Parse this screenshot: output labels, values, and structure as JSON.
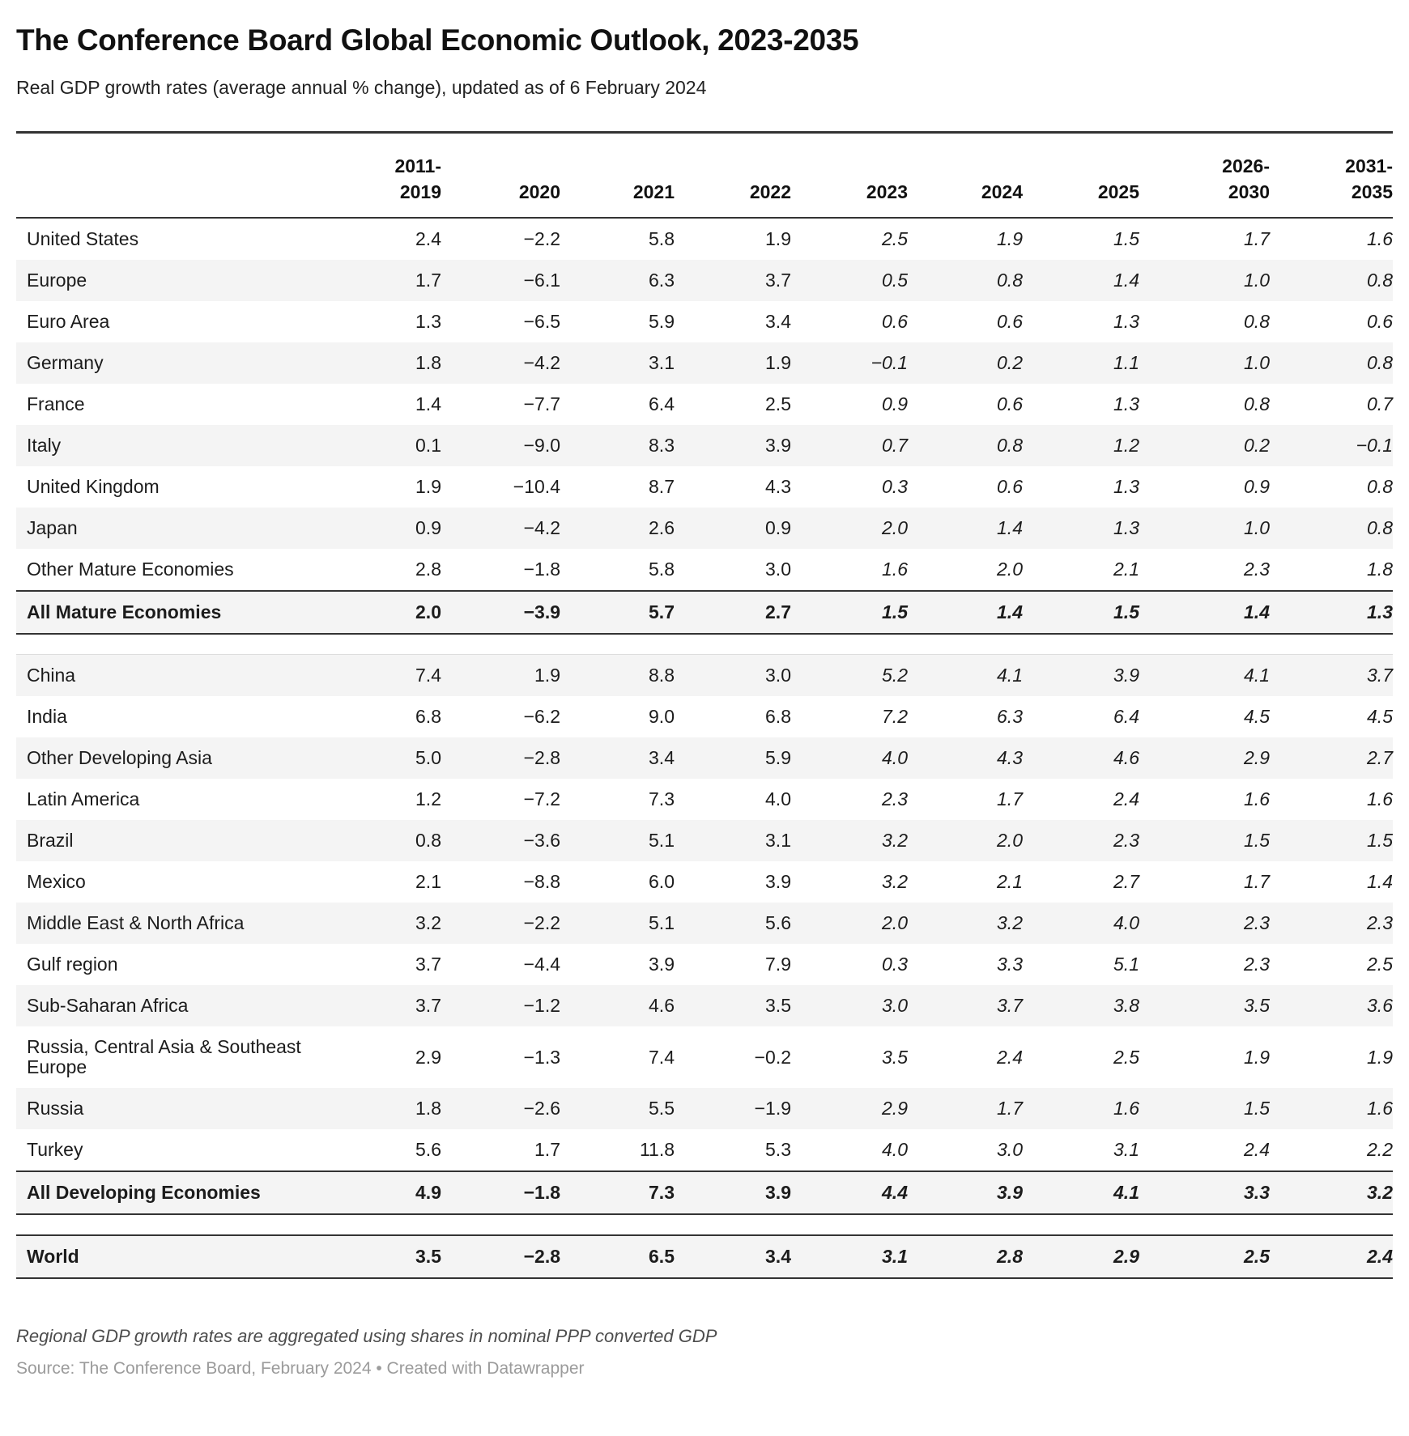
{
  "chart_data": {
    "type": "table",
    "title": "The Conference Board Global Economic Outlook, 2023-2035",
    "subtitle": "Real GDP growth rates (average annual % change), updated as of 6 February 2024",
    "columns": [
      "",
      "2011-\n2019",
      "2020",
      "2021",
      "2022",
      "2023",
      "2024",
      "2025",
      "2026-\n2030",
      "2031-\n2035"
    ],
    "forecast_columns_start": 4,
    "sections": [
      {
        "name": "mature-economies",
        "rows": [
          {
            "label": "United States",
            "values": [
              "2.4",
              "−2.2",
              "5.8",
              "1.9",
              "2.5",
              "1.9",
              "1.5",
              "1.7",
              "1.6"
            ]
          },
          {
            "label": "Europe",
            "values": [
              "1.7",
              "−6.1",
              "6.3",
              "3.7",
              "0.5",
              "0.8",
              "1.4",
              "1.0",
              "0.8"
            ]
          },
          {
            "label": "Euro Area",
            "values": [
              "1.3",
              "−6.5",
              "5.9",
              "3.4",
              "0.6",
              "0.6",
              "1.3",
              "0.8",
              "0.6"
            ]
          },
          {
            "label": "Germany",
            "values": [
              "1.8",
              "−4.2",
              "3.1",
              "1.9",
              "−0.1",
              "0.2",
              "1.1",
              "1.0",
              "0.8"
            ]
          },
          {
            "label": "France",
            "values": [
              "1.4",
              "−7.7",
              "6.4",
              "2.5",
              "0.9",
              "0.6",
              "1.3",
              "0.8",
              "0.7"
            ]
          },
          {
            "label": "Italy",
            "values": [
              "0.1",
              "−9.0",
              "8.3",
              "3.9",
              "0.7",
              "0.8",
              "1.2",
              "0.2",
              "−0.1"
            ]
          },
          {
            "label": "United Kingdom",
            "values": [
              "1.9",
              "−10.4",
              "8.7",
              "4.3",
              "0.3",
              "0.6",
              "1.3",
              "0.9",
              "0.8"
            ]
          },
          {
            "label": "Japan",
            "values": [
              "0.9",
              "−4.2",
              "2.6",
              "0.9",
              "2.0",
              "1.4",
              "1.3",
              "1.0",
              "0.8"
            ]
          },
          {
            "label": "Other Mature Economies",
            "values": [
              "2.8",
              "−1.8",
              "5.8",
              "3.0",
              "1.6",
              "2.0",
              "2.1",
              "2.3",
              "1.8"
            ]
          }
        ],
        "total_row": {
          "label": "All Mature Economies",
          "values": [
            "2.0",
            "−3.9",
            "5.7",
            "2.7",
            "1.5",
            "1.4",
            "1.5",
            "1.4",
            "1.3"
          ]
        }
      },
      {
        "name": "developing-economies",
        "rows": [
          {
            "label": "China",
            "values": [
              "7.4",
              "1.9",
              "8.8",
              "3.0",
              "5.2",
              "4.1",
              "3.9",
              "4.1",
              "3.7"
            ]
          },
          {
            "label": "India",
            "values": [
              "6.8",
              "−6.2",
              "9.0",
              "6.8",
              "7.2",
              "6.3",
              "6.4",
              "4.5",
              "4.5"
            ]
          },
          {
            "label": "Other Developing Asia",
            "values": [
              "5.0",
              "−2.8",
              "3.4",
              "5.9",
              "4.0",
              "4.3",
              "4.6",
              "2.9",
              "2.7"
            ]
          },
          {
            "label": "Latin America",
            "values": [
              "1.2",
              "−7.2",
              "7.3",
              "4.0",
              "2.3",
              "1.7",
              "2.4",
              "1.6",
              "1.6"
            ]
          },
          {
            "label": "Brazil",
            "values": [
              "0.8",
              "−3.6",
              "5.1",
              "3.1",
              "3.2",
              "2.0",
              "2.3",
              "1.5",
              "1.5"
            ]
          },
          {
            "label": "Mexico",
            "values": [
              "2.1",
              "−8.8",
              "6.0",
              "3.9",
              "3.2",
              "2.1",
              "2.7",
              "1.7",
              "1.4"
            ]
          },
          {
            "label": "Middle East & North Africa",
            "values": [
              "3.2",
              "−2.2",
              "5.1",
              "5.6",
              "2.0",
              "3.2",
              "4.0",
              "2.3",
              "2.3"
            ]
          },
          {
            "label": "Gulf region",
            "values": [
              "3.7",
              "−4.4",
              "3.9",
              "7.9",
              "0.3",
              "3.3",
              "5.1",
              "2.3",
              "2.5"
            ]
          },
          {
            "label": "Sub-Saharan Africa",
            "values": [
              "3.7",
              "−1.2",
              "4.6",
              "3.5",
              "3.0",
              "3.7",
              "3.8",
              "3.5",
              "3.6"
            ]
          },
          {
            "label": "Russia, Central Asia & Southeast Europe",
            "values": [
              "2.9",
              "−1.3",
              "7.4",
              "−0.2",
              "3.5",
              "2.4",
              "2.5",
              "1.9",
              "1.9"
            ]
          },
          {
            "label": "Russia",
            "values": [
              "1.8",
              "−2.6",
              "5.5",
              "−1.9",
              "2.9",
              "1.7",
              "1.6",
              "1.5",
              "1.6"
            ]
          },
          {
            "label": "Turkey",
            "values": [
              "5.6",
              "1.7",
              "11.8",
              "5.3",
              "4.0",
              "3.0",
              "3.1",
              "2.4",
              "2.2"
            ]
          }
        ],
        "total_row": {
          "label": "All Developing Economies",
          "values": [
            "4.9",
            "−1.8",
            "7.3",
            "3.9",
            "4.4",
            "3.9",
            "4.1",
            "3.3",
            "3.2"
          ]
        }
      },
      {
        "name": "world",
        "rows": [],
        "total_row": {
          "label": "World",
          "values": [
            "3.5",
            "−2.8",
            "6.5",
            "3.4",
            "3.1",
            "2.8",
            "2.9",
            "2.5",
            "2.4"
          ]
        }
      }
    ],
    "note": "Regional GDP growth rates are aggregated using shares in nominal PPP converted GDP",
    "source": "Source: The Conference Board, February 2024 • Created with Datawrapper"
  },
  "colors": {
    "rule_dark": "#333333",
    "stripe_background": "#f4f4f4",
    "text": "#1c1c1c",
    "note_text": "#4d4d4d",
    "source_text": "#9b9b9b",
    "row_divider": "#dddddd"
  }
}
